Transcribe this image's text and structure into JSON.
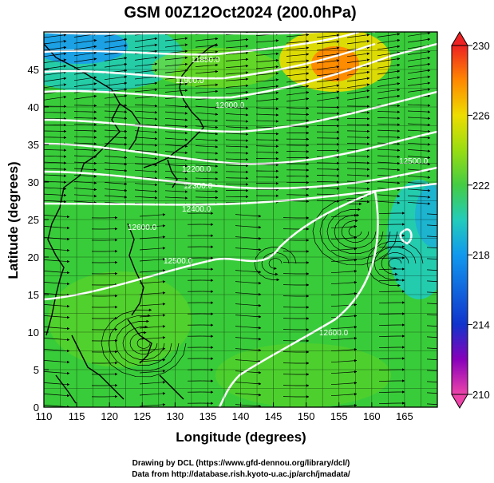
{
  "title": "GSM 00Z12Oct2024 (200.0hPa)",
  "xlabel": "Longitude (degrees)",
  "ylabel": "Latitude  (degrees)",
  "credits": [
    "Drawing by DCL (https://www.gfd-dennou.org/library/dcl/)",
    "Data from http://database.rish.kyoto-u.ac.jp/arch/jmadata/"
  ],
  "chart_data": {
    "type": "heatmap",
    "x_ticks": [
      110,
      115,
      120,
      125,
      130,
      135,
      140,
      145,
      150,
      155,
      160,
      165
    ],
    "y_ticks": [
      0,
      5,
      10,
      15,
      20,
      25,
      30,
      35,
      40,
      45
    ],
    "xlim": [
      110,
      170
    ],
    "ylim": [
      0,
      50
    ],
    "colorbar": {
      "ticks": [
        210,
        214,
        218,
        222,
        226,
        230
      ],
      "range": [
        210,
        230
      ],
      "colors": [
        "#ee44aa",
        "#8800bb",
        "#1133cc",
        "#1199ee",
        "#22ccbb",
        "#44cc44",
        "#99dd11",
        "#eedd00",
        "#ff8800",
        "#ee2222"
      ]
    },
    "contour_labels": [
      "11850.0",
      "11900.0",
      "12000.0",
      "12200.0",
      "12300.0",
      "12400.0",
      "12500.0",
      "12500.0",
      "12600.0",
      "12600.0"
    ]
  }
}
